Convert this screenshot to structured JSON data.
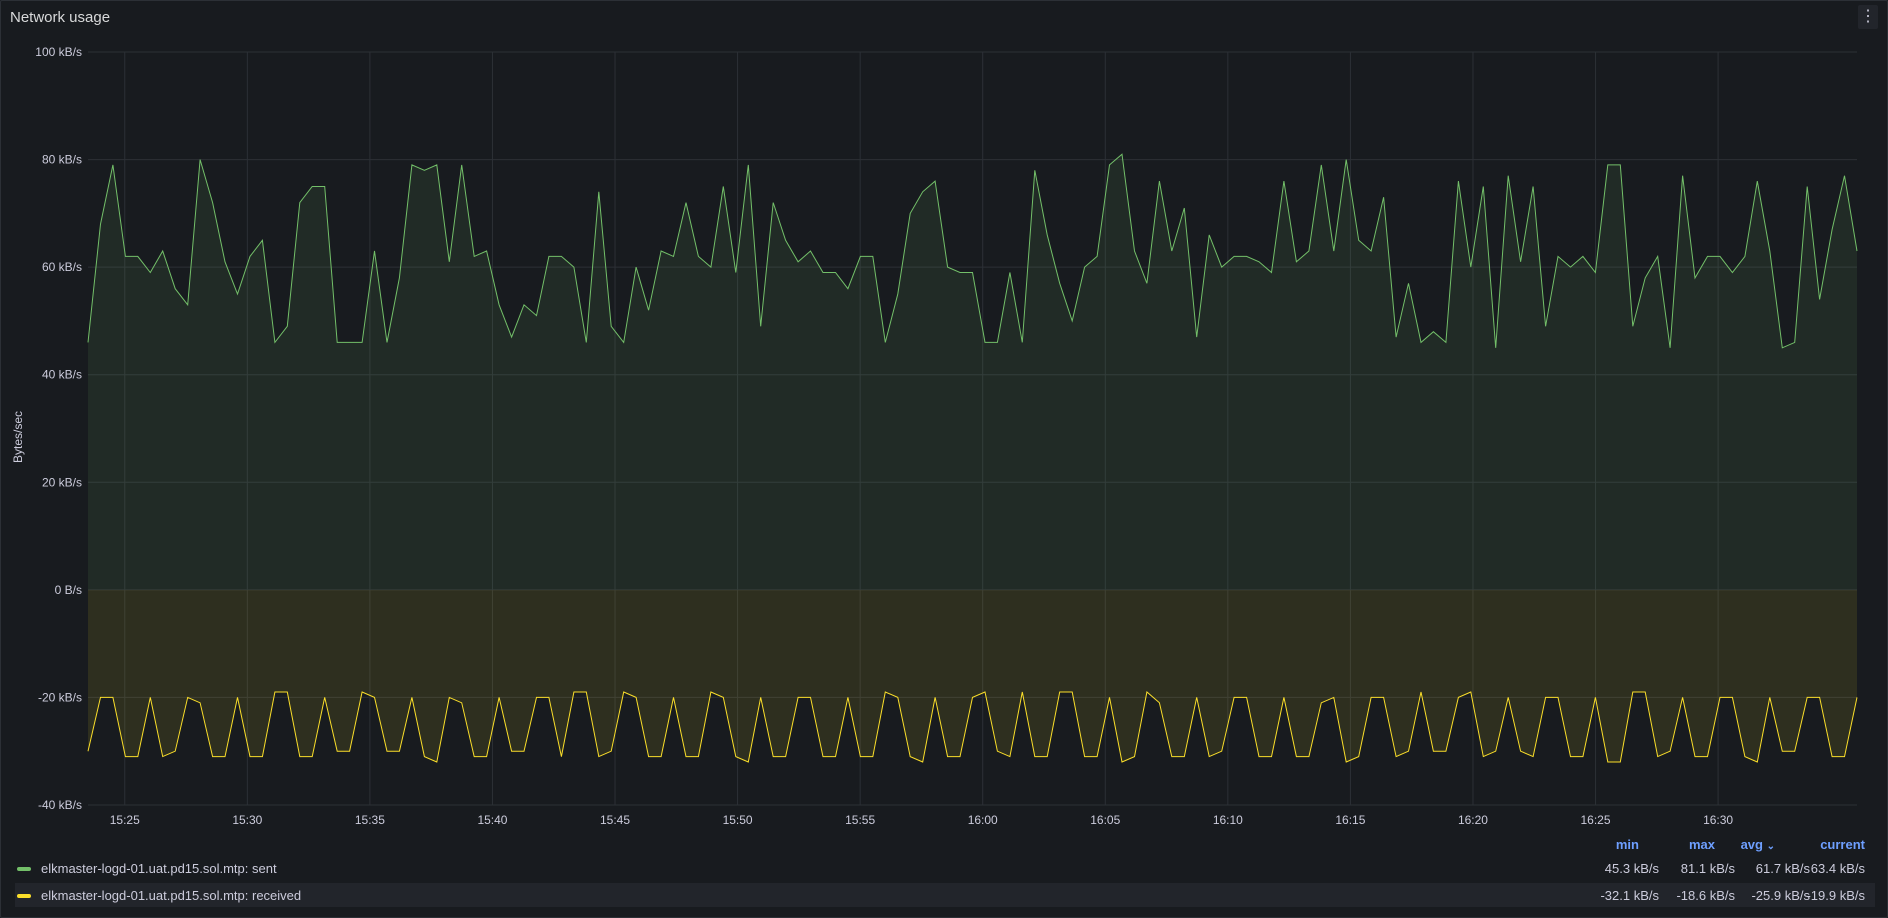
{
  "panel": {
    "title": "Network usage",
    "menu_icon": "kebab-menu-icon"
  },
  "colors": {
    "sent": "#73bf69",
    "received": "#fade2a",
    "grid": "#2c3036",
    "text": "#ccccdc",
    "header": "#6e9fff"
  },
  "legend": {
    "headers": {
      "min": "min",
      "max": "max",
      "avg": "avg",
      "avg_sort_icon": "chevron-down-icon",
      "current": "current"
    },
    "rows": [
      {
        "name": "elkmaster-logd-01.uat.pd15.sol.mtp: sent",
        "min": "45.3 kB/s",
        "max": "81.1 kB/s",
        "avg": "61.7 kB/s",
        "current": "63.4 kB/s"
      },
      {
        "name": "elkmaster-logd-01.uat.pd15.sol.mtp: received",
        "min": "-32.1 kB/s",
        "max": "-18.6 kB/s",
        "avg": "-25.9 kB/s",
        "current": "-19.9 kB/s"
      }
    ]
  },
  "chart_data": {
    "type": "area",
    "ylabel": "Bytes/sec",
    "ylim": [
      -40,
      100
    ],
    "yticks": [
      100,
      80,
      60,
      40,
      20,
      0,
      -20,
      -40
    ],
    "ytick_labels": [
      "100 kB/s",
      "80 kB/s",
      "60 kB/s",
      "40 kB/s",
      "20 kB/s",
      "0 B/s",
      "-20 kB/s",
      "-40 kB/s"
    ],
    "xlim": [
      "15:23:30",
      "16:35:40"
    ],
    "xticks": [
      "15:25",
      "15:30",
      "15:35",
      "15:40",
      "15:45",
      "15:50",
      "15:55",
      "16:00",
      "16:05",
      "16:10",
      "16:15",
      "16:20",
      "16:25",
      "16:30"
    ],
    "grid": true,
    "legend_position": "bottom",
    "series": [
      {
        "name": "elkmaster-logd-01.uat.pd15.sol.mtp: sent",
        "unit": "kB/s",
        "values": [
          46,
          68,
          79,
          62,
          62,
          59,
          63,
          56,
          53,
          80,
          72,
          61,
          55,
          62,
          65,
          46,
          49,
          72,
          75,
          75,
          46,
          46,
          46,
          63,
          46,
          58,
          79,
          78,
          79,
          61,
          79,
          62,
          63,
          53,
          47,
          53,
          51,
          62,
          62,
          60,
          46,
          74,
          49,
          46,
          60,
          52,
          63,
          62,
          72,
          62,
          60,
          75,
          59,
          79,
          49,
          72,
          65,
          61,
          63,
          59,
          59,
          56,
          62,
          62,
          46,
          55,
          70,
          74,
          76,
          60,
          59,
          59,
          46,
          46,
          59,
          46,
          78,
          66,
          57,
          50,
          60,
          62,
          79,
          81,
          63,
          57,
          76,
          63,
          71,
          47,
          66,
          60,
          62,
          62,
          61,
          59,
          76,
          61,
          63,
          79,
          63,
          80,
          65,
          63,
          73,
          47,
          57,
          46,
          48,
          46,
          76,
          60,
          75,
          45,
          77,
          61,
          75,
          49,
          62,
          60,
          62,
          59,
          79,
          79,
          49,
          58,
          62,
          45,
          77,
          58,
          62,
          62,
          59,
          62,
          76,
          63,
          45,
          46,
          75,
          54,
          67,
          77,
          63
        ]
      },
      {
        "name": "elkmaster-logd-01.uat.pd15.sol.mtp: received",
        "unit": "kB/s",
        "values": [
          -30,
          -20,
          -20,
          -31,
          -31,
          -20,
          -31,
          -30,
          -20,
          -21,
          -31,
          -31,
          -20,
          -31,
          -31,
          -19,
          -19,
          -31,
          -31,
          -20,
          -30,
          -30,
          -19,
          -20,
          -30,
          -30,
          -20,
          -31,
          -32,
          -20,
          -21,
          -31,
          -31,
          -20,
          -30,
          -30,
          -20,
          -20,
          -31,
          -19,
          -19,
          -31,
          -30,
          -19,
          -20,
          -31,
          -31,
          -20,
          -31,
          -31,
          -19,
          -20,
          -31,
          -32,
          -20,
          -31,
          -31,
          -20,
          -20,
          -31,
          -31,
          -20,
          -31,
          -31,
          -19,
          -20,
          -31,
          -32,
          -20,
          -31,
          -31,
          -20,
          -19,
          -30,
          -31,
          -19,
          -31,
          -31,
          -19,
          -19,
          -31,
          -31,
          -20,
          -32,
          -31,
          -19,
          -21,
          -31,
          -31,
          -20,
          -31,
          -30,
          -20,
          -20,
          -31,
          -31,
          -20,
          -31,
          -31,
          -21,
          -20,
          -32,
          -31,
          -20,
          -20,
          -31,
          -30,
          -19,
          -30,
          -30,
          -20,
          -19,
          -31,
          -30,
          -20,
          -30,
          -31,
          -20,
          -20,
          -31,
          -31,
          -20,
          -32,
          -32,
          -19,
          -19,
          -31,
          -30,
          -20,
          -31,
          -31,
          -20,
          -20,
          -31,
          -32,
          -20,
          -30,
          -30,
          -20,
          -20,
          -31,
          -31,
          -20
        ]
      }
    ]
  }
}
